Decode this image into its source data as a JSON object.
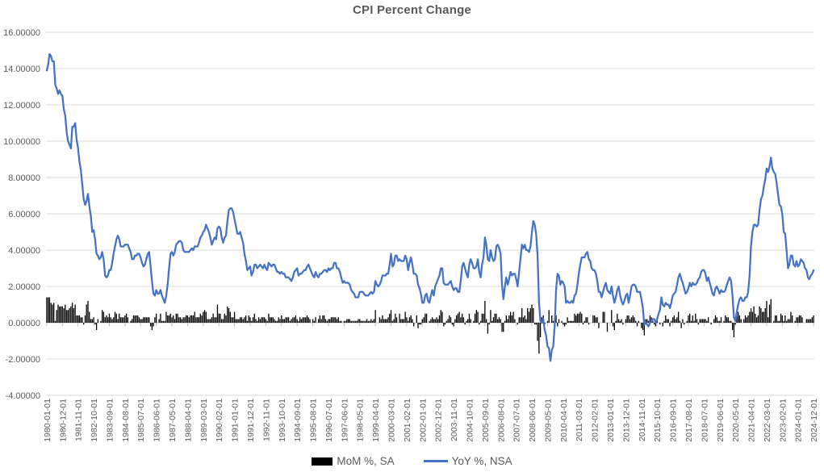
{
  "chart_data": {
    "type": "composite",
    "title": "CPI Percent Change",
    "x_start": "1980-01",
    "x_frequency": "monthly",
    "x_points": 540,
    "ylim": [
      -4,
      16
    ],
    "grid": "horizontal",
    "legend_position": "bottom",
    "background": "#FFFFFF",
    "gridline_color": "#D9D9D9",
    "axis_color": "#BFBFBF",
    "text_color": "#595959",
    "y_tick_labels": [
      "16.00000",
      "14.00000",
      "12.00000",
      "10.00000",
      "8.00000",
      "6.00000",
      "4.00000",
      "2.00000",
      "0.00000",
      "-2.00000",
      "-4.00000"
    ],
    "x_tick_interval_months": 11,
    "x_tick_labels": [
      "1980-01-01",
      "1980-12-01",
      "1981-11-01",
      "1982-10-01",
      "1983-09-01",
      "1984-08-01",
      "1985-07-01",
      "1986-06-01",
      "1987-05-01",
      "1988-04-01",
      "1989-03-01",
      "1990-02-01",
      "1991-01-01",
      "1991-12-01",
      "1992-11-01",
      "1993-10-01",
      "1994-09-01",
      "1995-08-01",
      "1996-07-01",
      "1997-06-01",
      "1998-05-01",
      "1999-04-01",
      "2000-03-01",
      "2001-02-01",
      "2002-01-01",
      "2002-12-01",
      "2003-11-01",
      "2004-10-01",
      "2005-09-01",
      "2006-08-01",
      "2007-07-01",
      "2008-06-01",
      "2009-05-01",
      "2010-04-01",
      "2011-03-01",
      "2012-02-01",
      "2013-01-01",
      "2013-12-01",
      "2014-11-01",
      "2015-10-01",
      "2016-09-01",
      "2017-08-01",
      "2018-07-01",
      "2019-06-01",
      "2020-05-01",
      "2021-04-01",
      "2022-03-01",
      "2023-02-01",
      "2024-01-01",
      "2024-12-01"
    ],
    "series": [
      {
        "name": "MoM %, SA",
        "type": "bar",
        "color": "#000000",
        "values": [
          1.4,
          1.4,
          1.4,
          1.1,
          1.0,
          1.1,
          0.1,
          0.7,
          1.0,
          0.9,
          0.9,
          0.9,
          0.8,
          1.0,
          0.7,
          0.7,
          0.8,
          0.9,
          1.1,
          0.8,
          1.0,
          0.4,
          0.4,
          0.4,
          0.3,
          0.3,
          -0.1,
          0.4,
          1.0,
          1.2,
          0.6,
          0.2,
          0.2,
          0.3,
          -0.1,
          -0.4,
          0.2,
          0.0,
          0.1,
          0.7,
          0.6,
          0.3,
          0.4,
          0.3,
          0.5,
          0.3,
          0.2,
          0.3,
          0.6,
          0.5,
          0.2,
          0.5,
          0.3,
          0.3,
          0.3,
          0.4,
          0.5,
          0.3,
          0.0,
          0.1,
          0.2,
          0.4,
          0.4,
          0.4,
          0.4,
          0.3,
          0.2,
          0.2,
          0.3,
          0.3,
          0.3,
          0.3,
          0.3,
          -0.2,
          -0.4,
          -0.2,
          0.3,
          0.5,
          0.0,
          0.2,
          0.5,
          0.1,
          0.1,
          0.1,
          0.6,
          0.4,
          0.4,
          0.5,
          0.3,
          0.4,
          0.2,
          0.5,
          0.5,
          0.3,
          0.3,
          0.2,
          0.3,
          0.3,
          0.4,
          0.4,
          0.3,
          0.4,
          0.4,
          0.4,
          0.6,
          0.3,
          0.3,
          0.3,
          0.5,
          0.4,
          0.6,
          0.7,
          0.6,
          0.2,
          0.2,
          0.2,
          0.3,
          0.5,
          0.3,
          0.3,
          1.0,
          0.5,
          0.5,
          0.2,
          0.2,
          0.5,
          0.4,
          0.9,
          0.8,
          0.6,
          0.3,
          0.3,
          0.6,
          0.2,
          0.2,
          0.2,
          0.3,
          0.3,
          0.2,
          0.3,
          0.4,
          0.1,
          0.4,
          0.3,
          0.1,
          0.3,
          0.5,
          0.2,
          0.1,
          0.3,
          0.2,
          0.3,
          0.3,
          0.3,
          0.2,
          0.1,
          0.5,
          0.3,
          0.3,
          0.3,
          0.2,
          0.1,
          0.1,
          0.3,
          0.2,
          0.4,
          0.2,
          0.2,
          0.3,
          0.3,
          0.3,
          0.1,
          0.2,
          0.3,
          0.3,
          0.4,
          0.2,
          0.1,
          0.3,
          0.2,
          0.3,
          0.3,
          0.3,
          0.4,
          0.3,
          0.2,
          0.0,
          0.2,
          0.1,
          0.3,
          0.0,
          0.2,
          0.4,
          0.2,
          0.4,
          0.4,
          0.2,
          0.1,
          0.2,
          0.2,
          0.3,
          0.3,
          0.3,
          0.3,
          0.2,
          0.3,
          0.1,
          0.1,
          0.0,
          0.1,
          0.1,
          0.2,
          0.2,
          0.2,
          0.1,
          0.1,
          0.1,
          0.1,
          0.1,
          0.2,
          0.2,
          0.1,
          0.1,
          0.1,
          0.1,
          0.2,
          0.1,
          0.1,
          0.2,
          0.1,
          0.2,
          0.7,
          0.0,
          0.0,
          0.3,
          0.2,
          0.4,
          0.2,
          0.2,
          0.2,
          0.3,
          0.5,
          0.7,
          0.1,
          0.2,
          0.5,
          0.3,
          0.0,
          0.5,
          0.2,
          0.2,
          0.2,
          0.6,
          0.3,
          0.1,
          0.3,
          0.4,
          0.2,
          -0.2,
          0.0,
          0.4,
          -0.3,
          -0.1,
          -0.1,
          0.2,
          0.3,
          0.5,
          0.5,
          0.0,
          0.1,
          0.2,
          0.3,
          0.2,
          0.2,
          0.3,
          0.2,
          0.4,
          0.7,
          0.6,
          -0.2,
          -0.1,
          0.1,
          0.2,
          0.4,
          0.3,
          -0.1,
          -0.2,
          0.2,
          0.4,
          0.5,
          0.6,
          0.3,
          0.5,
          0.3,
          -0.1,
          0.1,
          0.2,
          0.5,
          0.2,
          0.0,
          0.1,
          0.5,
          0.7,
          0.6,
          -0.1,
          0.1,
          0.5,
          0.5,
          1.2,
          0.2,
          -0.6,
          -0.1,
          0.7,
          0.1,
          0.3,
          0.5,
          0.5,
          0.2,
          0.3,
          0.2,
          -0.5,
          -0.5,
          0.1,
          0.4,
          0.2,
          0.4,
          0.6,
          0.4,
          0.6,
          0.2,
          0.0,
          -0.1,
          0.3,
          0.3,
          0.8,
          0.3,
          0.4,
          0.2,
          0.8,
          0.6,
          0.8,
          1.0,
          0.8,
          -0.1,
          -0.1,
          -1.0,
          -1.7,
          -0.8,
          0.3,
          0.4,
          -0.1,
          0.0,
          0.1,
          0.7,
          0.0,
          0.4,
          0.1,
          0.3,
          0.4,
          -0.2,
          0.2,
          0.0,
          0.1,
          -0.1,
          -0.2,
          -0.1,
          0.3,
          0.1,
          0.1,
          0.1,
          0.1,
          0.5,
          0.4,
          0.5,
          0.5,
          0.6,
          0.5,
          -0.1,
          0.1,
          0.3,
          0.3,
          -0.1,
          0.0,
          0.0,
          0.4,
          0.4,
          0.3,
          0.3,
          -0.3,
          0.0,
          0.0,
          0.6,
          0.6,
          0.0,
          -0.5,
          0.0,
          0.0,
          0.7,
          -0.2,
          -0.4,
          0.1,
          0.5,
          0.2,
          0.1,
          0.2,
          -0.1,
          0.0,
          0.2,
          0.4,
          0.4,
          0.2,
          0.3,
          0.4,
          0.3,
          0.1,
          -0.2,
          0.1,
          0.0,
          -0.3,
          -0.4,
          -0.7,
          0.2,
          0.2,
          0.1,
          0.4,
          0.3,
          0.1,
          -0.1,
          -0.2,
          0.2,
          0.0,
          -0.1,
          0.0,
          -0.2,
          0.1,
          0.4,
          0.2,
          0.2,
          -0.2,
          0.1,
          0.3,
          0.4,
          0.2,
          0.3,
          0.6,
          0.1,
          -0.3,
          0.2,
          -0.1,
          0.0,
          0.1,
          0.4,
          0.5,
          0.1,
          0.4,
          0.1,
          0.5,
          0.2,
          -0.1,
          0.2,
          0.2,
          0.2,
          0.2,
          0.2,
          0.1,
          0.3,
          0.0,
          -0.1,
          0.0,
          0.2,
          0.4,
          0.3,
          0.1,
          0.1,
          0.3,
          0.0,
          0.1,
          0.4,
          0.3,
          0.3,
          0.1,
          0.1,
          -0.4,
          -0.8,
          -0.1,
          0.6,
          0.6,
          0.4,
          0.2,
          0.0,
          0.2,
          0.4,
          0.3,
          0.4,
          0.6,
          0.8,
          0.6,
          0.9,
          0.5,
          0.3,
          0.4,
          0.9,
          0.8,
          0.6,
          0.6,
          0.8,
          1.2,
          0.3,
          1.0,
          1.3,
          0.0,
          0.1,
          0.4,
          0.4,
          0.1,
          0.1,
          0.5,
          0.4,
          0.1,
          0.4,
          0.1,
          0.2,
          0.2,
          0.6,
          0.4,
          0.0,
          0.1,
          0.3,
          0.3,
          0.4,
          0.4,
          0.3,
          0.0,
          0.0,
          0.2,
          0.2,
          0.2,
          0.2,
          0.3,
          0.4
        ]
      },
      {
        "name": "YoY %, NSA",
        "type": "line",
        "color": "#4472C4",
        "values": [
          13.9,
          14.2,
          14.8,
          14.7,
          14.4,
          14.4,
          13.1,
          12.9,
          12.6,
          12.8,
          12.6,
          12.5,
          11.8,
          11.4,
          10.5,
          10.0,
          9.8,
          9.6,
          10.8,
          10.8,
          11.0,
          10.1,
          9.6,
          8.9,
          8.4,
          7.6,
          6.8,
          6.5,
          6.7,
          7.1,
          6.4,
          5.9,
          5.0,
          5.1,
          4.6,
          3.8,
          3.7,
          3.5,
          3.6,
          3.9,
          3.5,
          2.6,
          2.5,
          2.6,
          2.9,
          2.9,
          3.3,
          3.8,
          4.2,
          4.6,
          4.8,
          4.6,
          4.2,
          4.2,
          4.2,
          4.3,
          4.3,
          4.3,
          4.1,
          3.9,
          3.5,
          3.5,
          3.7,
          3.7,
          3.8,
          3.8,
          3.6,
          3.3,
          3.1,
          3.2,
          3.5,
          3.8,
          3.9,
          3.1,
          2.3,
          1.6,
          1.5,
          1.8,
          1.6,
          1.6,
          1.8,
          1.5,
          1.3,
          1.1,
          1.5,
          2.1,
          3.0,
          3.8,
          3.9,
          3.7,
          3.9,
          4.3,
          4.4,
          4.5,
          4.5,
          4.4,
          4.0,
          3.9,
          3.9,
          3.9,
          3.9,
          4.0,
          4.1,
          4.0,
          4.2,
          4.2,
          4.2,
          4.4,
          4.7,
          4.8,
          5.0,
          5.1,
          5.4,
          5.2,
          5.0,
          4.7,
          4.3,
          4.5,
          4.7,
          4.6,
          5.2,
          5.3,
          5.2,
          4.7,
          4.4,
          4.7,
          4.8,
          5.6,
          6.2,
          6.3,
          6.3,
          6.1,
          5.7,
          5.3,
          4.9,
          4.9,
          5.0,
          4.7,
          4.4,
          3.8,
          3.4,
          2.9,
          3.0,
          3.1,
          2.6,
          2.8,
          3.2,
          3.2,
          3.0,
          3.1,
          3.2,
          3.1,
          3.0,
          3.2,
          3.0,
          2.9,
          3.3,
          3.2,
          3.1,
          3.2,
          3.2,
          3.0,
          2.8,
          2.8,
          2.7,
          2.8,
          2.7,
          2.7,
          2.5,
          2.5,
          2.5,
          2.4,
          2.3,
          2.5,
          2.8,
          2.9,
          3.0,
          2.6,
          2.7,
          2.7,
          2.8,
          2.9,
          2.9,
          3.1,
          3.2,
          3.0,
          2.8,
          2.6,
          2.5,
          2.8,
          2.6,
          2.5,
          2.7,
          2.7,
          2.8,
          2.9,
          2.9,
          2.8,
          3.0,
          2.9,
          3.0,
          3.0,
          3.3,
          3.3,
          3.0,
          3.0,
          2.8,
          2.5,
          2.2,
          2.3,
          2.2,
          2.2,
          2.2,
          2.1,
          1.8,
          1.7,
          1.6,
          1.4,
          1.4,
          1.4,
          1.7,
          1.7,
          1.7,
          1.6,
          1.5,
          1.5,
          1.5,
          1.6,
          1.7,
          1.6,
          1.7,
          2.3,
          2.1,
          2.0,
          2.1,
          2.3,
          2.6,
          2.6,
          2.6,
          2.7,
          2.7,
          3.2,
          3.8,
          3.1,
          3.2,
          3.7,
          3.7,
          3.4,
          3.5,
          3.4,
          3.4,
          3.4,
          3.7,
          3.5,
          2.9,
          3.3,
          3.6,
          3.2,
          2.7,
          2.7,
          2.6,
          2.1,
          1.9,
          1.6,
          1.1,
          1.1,
          1.5,
          1.6,
          1.2,
          1.1,
          1.5,
          1.8,
          1.5,
          2.0,
          2.2,
          2.4,
          2.6,
          3.0,
          3.0,
          2.2,
          2.1,
          2.1,
          2.1,
          2.2,
          2.3,
          2.0,
          1.8,
          1.9,
          1.9,
          1.7,
          1.7,
          2.3,
          3.1,
          3.3,
          3.0,
          2.7,
          2.5,
          3.2,
          3.5,
          3.3,
          3.0,
          3.0,
          3.1,
          3.5,
          2.8,
          2.5,
          3.2,
          3.6,
          4.7,
          4.3,
          3.5,
          3.4,
          4.0,
          3.6,
          3.4,
          3.5,
          4.2,
          4.3,
          4.1,
          3.8,
          2.1,
          1.3,
          2.0,
          2.5,
          2.1,
          2.4,
          2.8,
          2.6,
          2.7,
          2.7,
          2.4,
          2.0,
          2.8,
          3.5,
          4.3,
          4.1,
          4.3,
          4.0,
          4.0,
          3.9,
          4.2,
          5.0,
          5.6,
          5.4,
          4.9,
          3.7,
          1.1,
          0.1,
          0.0,
          0.2,
          -0.4,
          -0.7,
          -1.3,
          -1.4,
          -2.1,
          -1.5,
          -1.3,
          -0.2,
          1.8,
          2.7,
          2.6,
          2.1,
          2.3,
          2.2,
          2.0,
          1.1,
          1.2,
          1.1,
          1.1,
          1.2,
          1.1,
          1.5,
          1.6,
          2.1,
          2.7,
          3.2,
          3.6,
          3.6,
          3.6,
          3.8,
          3.9,
          3.5,
          3.4,
          3.0,
          2.9,
          2.9,
          2.7,
          2.3,
          1.7,
          1.7,
          1.4,
          1.7,
          2.0,
          2.2,
          1.8,
          1.7,
          1.6,
          2.0,
          1.5,
          1.1,
          1.4,
          1.8,
          2.0,
          1.5,
          1.2,
          1.0,
          1.2,
          1.5,
          1.6,
          1.1,
          1.5,
          2.0,
          2.1,
          2.1,
          2.0,
          1.7,
          1.7,
          1.7,
          1.3,
          0.8,
          -0.1,
          0.0,
          -0.1,
          -0.2,
          0.0,
          0.1,
          0.2,
          0.2,
          0.0,
          0.2,
          0.5,
          0.7,
          1.4,
          1.0,
          0.9,
          1.1,
          1.0,
          1.0,
          0.8,
          1.1,
          1.5,
          1.6,
          1.7,
          2.1,
          2.5,
          2.7,
          2.4,
          2.2,
          1.9,
          1.6,
          1.7,
          1.9,
          2.2,
          2.0,
          2.2,
          2.1,
          2.1,
          2.2,
          2.4,
          2.5,
          2.8,
          2.9,
          2.9,
          2.7,
          2.3,
          2.5,
          2.2,
          1.9,
          1.6,
          1.5,
          1.9,
          2.0,
          1.8,
          1.6,
          1.8,
          1.7,
          1.7,
          1.8,
          2.1,
          2.3,
          2.5,
          2.3,
          1.5,
          0.3,
          0.1,
          0.6,
          1.0,
          1.3,
          1.4,
          1.2,
          1.2,
          1.4,
          1.4,
          1.7,
          2.6,
          4.2,
          5.0,
          5.4,
          5.4,
          5.3,
          5.4,
          6.2,
          6.8,
          7.0,
          7.5,
          7.9,
          8.5,
          8.3,
          8.6,
          9.1,
          8.5,
          8.3,
          8.2,
          7.7,
          7.1,
          6.5,
          6.4,
          6.0,
          5.0,
          4.9,
          4.0,
          3.0,
          3.2,
          3.7,
          3.7,
          3.2,
          3.1,
          3.4,
          3.1,
          3.2,
          3.5,
          3.4,
          3.3,
          3.0,
          2.9,
          2.5,
          2.4,
          2.6,
          2.7,
          2.9
        ]
      }
    ]
  }
}
